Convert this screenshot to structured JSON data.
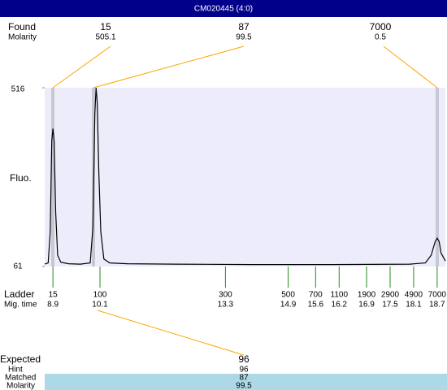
{
  "title_bar": "CM020445 (4:0)",
  "found": {
    "label": "Found",
    "molarity_label": "Molarity",
    "peaks": [
      {
        "size": 15,
        "molarity": 505.1
      },
      {
        "size": 87,
        "molarity": 99.5
      },
      {
        "size": 7000,
        "molarity": 0.5
      }
    ]
  },
  "chart_data": {
    "type": "line",
    "y_label": "Fluo.",
    "ylim": [
      61,
      516
    ],
    "yticks": [
      61,
      516
    ],
    "xlim": [
      8.69,
      18.91
    ],
    "x": [
      8.69,
      8.78,
      8.83,
      8.87,
      8.9,
      8.93,
      8.97,
      9.02,
      9.1,
      9.3,
      9.6,
      9.85,
      9.92,
      9.97,
      10.0,
      10.03,
      10.07,
      10.12,
      10.2,
      10.35,
      10.8,
      12,
      14,
      16,
      18,
      18.4,
      18.55,
      18.65,
      18.7,
      18.75,
      18.8,
      18.91
    ],
    "values": [
      67,
      70,
      150,
      380,
      412,
      380,
      200,
      90,
      72,
      68,
      67,
      70,
      160,
      450,
      516,
      480,
      300,
      150,
      80,
      70,
      68,
      67,
      66,
      66,
      67,
      70,
      90,
      125,
      133,
      125,
      95,
      75
    ],
    "color": "#000000"
  },
  "ladder": {
    "label": "Ladder",
    "mig_time_label": "Mig. time",
    "sizes": [
      15,
      100,
      300,
      500,
      700,
      1100,
      1900,
      2900,
      4900,
      7000
    ],
    "mig_times": [
      8.9,
      10.1,
      13.3,
      14.9,
      15.6,
      16.2,
      16.9,
      17.5,
      18.1,
      18.7
    ]
  },
  "expected": {
    "label": "Expected",
    "value": 96,
    "hint_label": "Hint",
    "hint": 96,
    "matched_label": "Matched",
    "matched": 87,
    "molarity_label": "Molarity",
    "molarity": 99.5
  }
}
